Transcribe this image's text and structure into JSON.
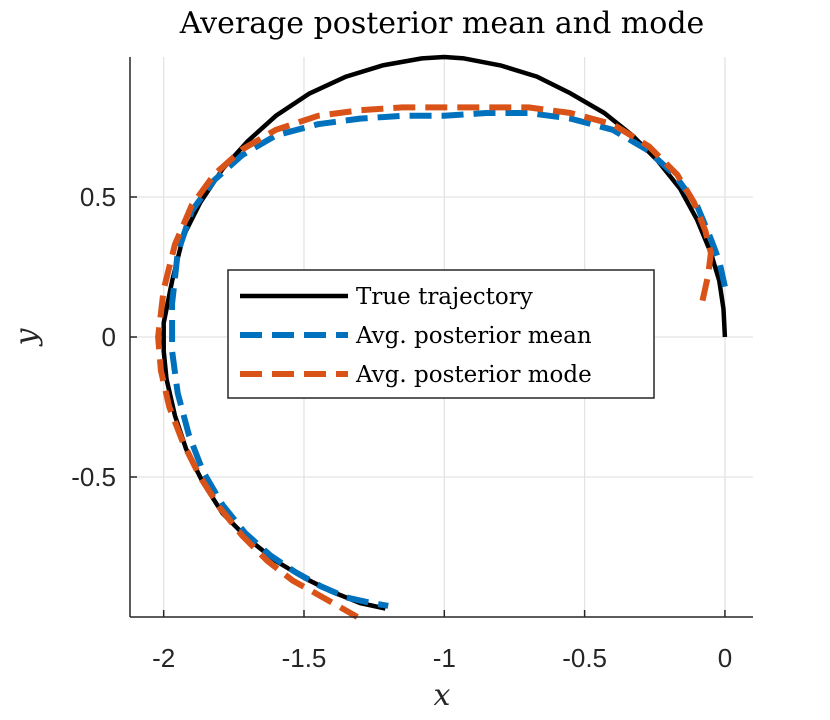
{
  "chart_data": {
    "type": "line",
    "title": "Average posterior mean and mode",
    "xlabel": "x",
    "ylabel": "y",
    "xlim": [
      -2.12,
      0.1
    ],
    "ylim": [
      -1.0,
      1.0
    ],
    "grid": true,
    "legend_position": "center",
    "x_ticks": [
      -2,
      -1.5,
      -1,
      -0.5,
      0
    ],
    "x_tick_labels": [
      "-2",
      "-1.5",
      "-1",
      "-0.5",
      "0"
    ],
    "y_ticks": [
      -0.5,
      0,
      0.5
    ],
    "y_tick_labels": [
      "-0.5",
      "0",
      "0.5"
    ],
    "series": [
      {
        "name": "True trajectory",
        "color": "#000000",
        "style": "solid",
        "x": [
          0.0,
          -0.005,
          -0.02,
          -0.05,
          -0.1,
          -0.16,
          -0.24,
          -0.33,
          -0.43,
          -0.55,
          -0.67,
          -0.8,
          -0.93,
          -1.0,
          -1.08,
          -1.22,
          -1.35,
          -1.48,
          -1.6,
          -1.7,
          -1.79,
          -1.87,
          -1.93,
          -1.97,
          -2.0,
          -2.0,
          -1.99,
          -1.96,
          -1.92,
          -1.86,
          -1.79,
          -1.7,
          -1.6,
          -1.5,
          -1.4,
          -1.3,
          -1.21
        ],
        "y": [
          0.0,
          0.1,
          0.2,
          0.3,
          0.42,
          0.53,
          0.63,
          0.72,
          0.8,
          0.87,
          0.93,
          0.97,
          0.995,
          1.0,
          0.995,
          0.97,
          0.93,
          0.87,
          0.79,
          0.7,
          0.6,
          0.48,
          0.36,
          0.2,
          0.05,
          -0.05,
          -0.15,
          -0.28,
          -0.4,
          -0.52,
          -0.63,
          -0.72,
          -0.8,
          -0.86,
          -0.91,
          -0.95,
          -0.97
        ]
      },
      {
        "name": "Avg. posterior mean",
        "color": "#0072BD",
        "style": "dashed",
        "x": [
          0.0,
          -0.02,
          -0.05,
          -0.1,
          -0.18,
          -0.28,
          -0.4,
          -0.55,
          -0.7,
          -0.85,
          -1.0,
          -1.15,
          -1.3,
          -1.45,
          -1.6,
          -1.72,
          -1.82,
          -1.9,
          -1.95,
          -1.97,
          -1.97,
          -1.95,
          -1.91,
          -1.86,
          -1.79,
          -1.71,
          -1.62,
          -1.53,
          -1.44,
          -1.35,
          -1.26,
          -1.2
        ],
        "y": [
          0.18,
          0.27,
          0.35,
          0.47,
          0.58,
          0.67,
          0.74,
          0.78,
          0.8,
          0.8,
          0.79,
          0.79,
          0.78,
          0.76,
          0.72,
          0.65,
          0.56,
          0.45,
          0.3,
          0.12,
          -0.05,
          -0.2,
          -0.35,
          -0.48,
          -0.6,
          -0.7,
          -0.78,
          -0.84,
          -0.89,
          -0.93,
          -0.95,
          -0.96
        ]
      },
      {
        "name": "Avg. posterior mode",
        "color": "#D95319",
        "style": "dashed",
        "x": [
          -0.08,
          -0.06,
          -0.05,
          -0.07,
          -0.11,
          -0.17,
          -0.27,
          -0.4,
          -0.55,
          -0.7,
          -0.85,
          -1.0,
          -1.15,
          -1.3,
          -1.45,
          -1.6,
          -1.72,
          -1.82,
          -1.9,
          -1.96,
          -2.0,
          -2.02,
          -2.01,
          -1.98,
          -1.93,
          -1.87,
          -1.8,
          -1.72,
          -1.63,
          -1.54,
          -1.45,
          -1.38,
          -1.31
        ],
        "y": [
          0.13,
          0.22,
          0.3,
          0.38,
          0.48,
          0.58,
          0.68,
          0.76,
          0.8,
          0.82,
          0.82,
          0.82,
          0.82,
          0.81,
          0.79,
          0.74,
          0.67,
          0.58,
          0.47,
          0.33,
          0.17,
          0.0,
          -0.12,
          -0.25,
          -0.38,
          -0.5,
          -0.61,
          -0.71,
          -0.8,
          -0.87,
          -0.92,
          -0.96,
          -1.0
        ]
      }
    ]
  }
}
